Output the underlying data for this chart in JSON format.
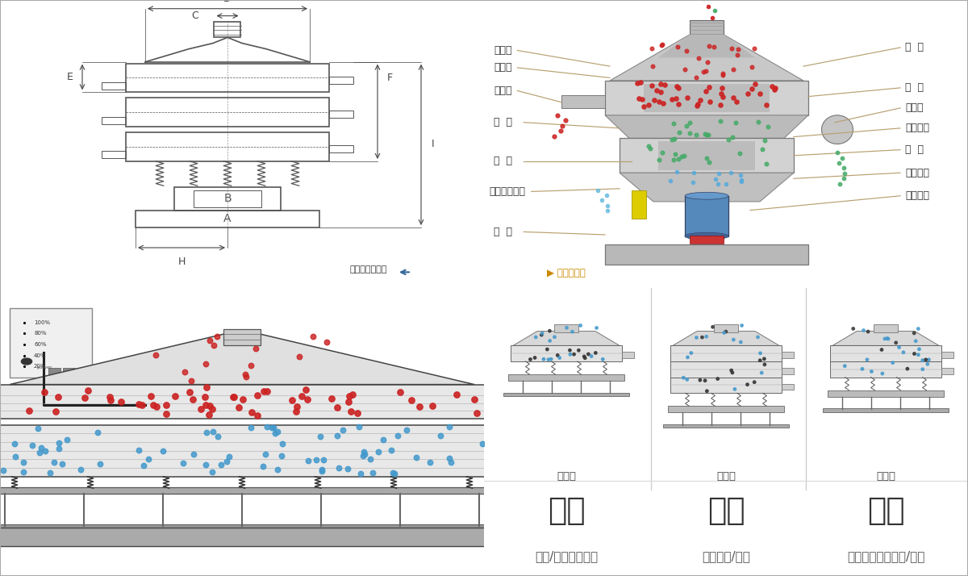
{
  "bg_color": "#ffffff",
  "border_color": "#cccccc",
  "label_color": "#333333",
  "line_color": "#b8a070",
  "red_dot": "#cc2222",
  "blue_dot": "#4499cc",
  "green_dot": "#44aa66",
  "nav_left": "外形尺寸示意图",
  "nav_right": "结构示意图",
  "bottom_sections": [
    {
      "title": "分级",
      "subtitle": "颗粒/粉末准确分级",
      "label": "单层式"
    },
    {
      "title": "过滤",
      "subtitle": "去除异物/结块",
      "label": "三层式"
    },
    {
      "title": "除杂",
      "subtitle": "去除液体中的颗粒/异物",
      "label": "双层式"
    }
  ],
  "title_font_size": 28,
  "subtitle_font_size": 11
}
